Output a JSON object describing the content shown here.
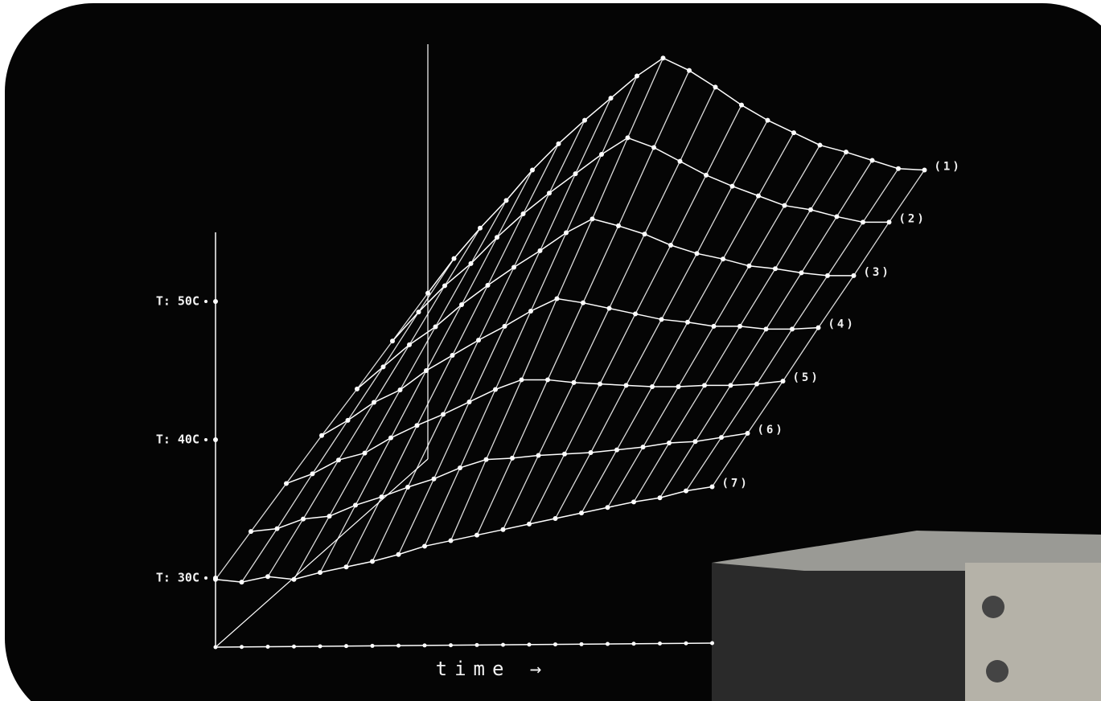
{
  "chart_data": {
    "type": "surface",
    "x_label": "time →",
    "categories": [
      null,
      null,
      null,
      null,
      null,
      null,
      null,
      null,
      null,
      null,
      null,
      null,
      null,
      null,
      null,
      null,
      null,
      null,
      null,
      null
    ],
    "ylim": [
      25,
      55
    ],
    "yticks": [
      {
        "value": 30,
        "label": "T: 30C"
      },
      {
        "value": 40,
        "label": "T: 40C"
      },
      {
        "value": 50,
        "label": "T: 50C"
      }
    ],
    "color": "#ffffff",
    "series": [
      {
        "name": "(1)",
        "values": [
          37.0,
          39.5,
          41.7,
          43.7,
          45.9,
          47.8,
          49.5,
          51.1,
          52.7,
          54.0,
          53.1,
          51.9,
          50.6,
          49.5,
          48.6,
          47.7,
          47.2,
          46.6,
          46.0,
          45.9
        ]
      },
      {
        "name": "(2)",
        "values": [
          35.8,
          37.9,
          39.8,
          41.4,
          43.3,
          45.0,
          46.5,
          47.9,
          49.3,
          50.5,
          49.8,
          48.8,
          47.8,
          47.0,
          46.3,
          45.6,
          45.3,
          44.8,
          44.4,
          44.4
        ]
      },
      {
        "name": "(3)",
        "values": [
          34.6,
          36.2,
          37.8,
          39.1,
          40.7,
          42.1,
          43.4,
          44.6,
          45.9,
          46.9,
          46.4,
          45.8,
          45.0,
          44.4,
          44.0,
          43.5,
          43.3,
          43.0,
          42.8,
          42.8
        ]
      },
      {
        "name": "(4)",
        "values": [
          33.5,
          34.6,
          35.9,
          36.8,
          38.2,
          39.3,
          40.4,
          41.4,
          42.5,
          43.4,
          43.1,
          42.7,
          42.3,
          41.9,
          41.7,
          41.4,
          41.4,
          41.2,
          41.2,
          41.3
        ]
      },
      {
        "name": "(5)",
        "values": [
          32.3,
          33.0,
          34.0,
          34.5,
          35.6,
          36.5,
          37.3,
          38.2,
          39.1,
          39.8,
          39.8,
          39.6,
          39.5,
          39.4,
          39.3,
          39.3,
          39.4,
          39.4,
          39.5,
          39.7
        ]
      },
      {
        "name": "(6)",
        "values": [
          31.1,
          31.3,
          32.0,
          32.2,
          33.0,
          33.6,
          34.3,
          34.9,
          35.7,
          36.3,
          36.4,
          36.6,
          36.7,
          36.8,
          37.0,
          37.2,
          37.5,
          37.6,
          37.9,
          38.2
        ]
      },
      {
        "name": "(7)",
        "values": [
          29.9,
          29.7,
          30.1,
          29.9,
          30.4,
          30.8,
          31.2,
          31.7,
          32.3,
          32.7,
          33.1,
          33.5,
          33.9,
          34.3,
          34.7,
          35.1,
          35.5,
          35.8,
          36.3,
          36.6
        ]
      }
    ]
  }
}
